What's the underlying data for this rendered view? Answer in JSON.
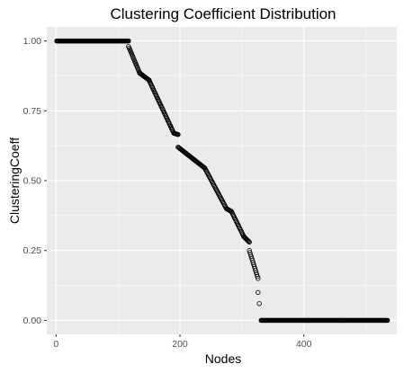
{
  "chart_data": {
    "type": "scatter",
    "title": "Clustering Coefficient Distribution",
    "xlabel": "Nodes",
    "ylabel": "ClusteringCoeff",
    "xlim": [
      -15,
      550
    ],
    "ylim": [
      -0.05,
      1.05
    ],
    "x_ticks": [
      0,
      200,
      400
    ],
    "x_tick_labels": [
      "0",
      "200",
      "400"
    ],
    "y_ticks": [
      0.0,
      0.25,
      0.5,
      0.75,
      1.0
    ],
    "y_tick_labels": [
      "0.00",
      "0.25",
      "0.50",
      "0.75",
      "1.00"
    ],
    "grid": true,
    "marker": "open-circle",
    "segments": [
      {
        "x_start": 1,
        "x_end": 117,
        "y_start": 1.0,
        "y_end": 1.0
      },
      {
        "x_start": 117,
        "x_end": 135,
        "y_start": 0.98,
        "y_end": 0.885
      },
      {
        "x_start": 135,
        "x_end": 150,
        "y_start": 0.885,
        "y_end": 0.86
      },
      {
        "x_start": 150,
        "x_end": 190,
        "y_start": 0.86,
        "y_end": 0.67
      },
      {
        "x_start": 190,
        "x_end": 197,
        "y_start": 0.67,
        "y_end": 0.665
      },
      {
        "x_start": 197,
        "x_end": 240,
        "y_start": 0.62,
        "y_end": 0.545
      },
      {
        "x_start": 240,
        "x_end": 275,
        "y_start": 0.545,
        "y_end": 0.4
      },
      {
        "x_start": 275,
        "x_end": 283,
        "y_start": 0.4,
        "y_end": 0.39
      },
      {
        "x_start": 283,
        "x_end": 303,
        "y_start": 0.39,
        "y_end": 0.3
      },
      {
        "x_start": 303,
        "x_end": 312,
        "y_start": 0.3,
        "y_end": 0.28
      },
      {
        "x_start": 312,
        "x_end": 326,
        "y_start": 0.25,
        "y_end": 0.15
      },
      {
        "x_start": 331,
        "x_end": 535,
        "y_start": 0.0,
        "y_end": 0.0
      }
    ],
    "points": [
      {
        "x": 326,
        "y": 0.1
      },
      {
        "x": 328,
        "y": 0.06
      }
    ]
  }
}
